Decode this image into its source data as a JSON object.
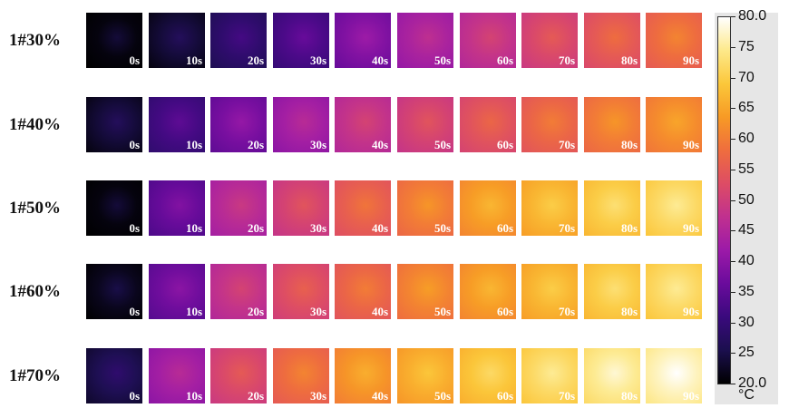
{
  "rows": [
    {
      "label": "1#30%",
      "temps": [
        21,
        24,
        29,
        33,
        39,
        44,
        48,
        52,
        55,
        58
      ]
    },
    {
      "label": "1#40%",
      "temps": [
        24,
        32,
        38,
        43,
        48,
        51,
        54,
        57,
        60,
        62
      ]
    },
    {
      "label": "1#50%",
      "temps": [
        21,
        36,
        46,
        51,
        56,
        60,
        64,
        67,
        70,
        72
      ]
    },
    {
      "label": "1#60%",
      "temps": [
        22,
        37,
        48,
        53,
        57,
        61,
        64,
        67,
        70,
        72
      ]
    },
    {
      "label": "1#70%",
      "temps": [
        26,
        43,
        52,
        58,
        63,
        66,
        69,
        72,
        75,
        77
      ]
    }
  ],
  "time_labels": [
    "0s",
    "10s",
    "20s",
    "30s",
    "40s",
    "50s",
    "60s",
    "70s",
    "80s",
    "90s"
  ],
  "color_scale": {
    "min": 20.0,
    "max": 80.0,
    "ticks": [
      "80.0",
      "75",
      "70",
      "65",
      "60",
      "55",
      "50",
      "45",
      "40",
      "35",
      "30",
      "25",
      "20.0"
    ],
    "unit": "°C",
    "colormap": [
      "#000000",
      "#1b0f4e",
      "#3a0a7d",
      "#6a0b9c",
      "#9c1aa8",
      "#c0308f",
      "#dd4c65",
      "#ef6d3e",
      "#f79a25",
      "#fbc73a",
      "#fde98a",
      "#ffffff"
    ]
  }
}
